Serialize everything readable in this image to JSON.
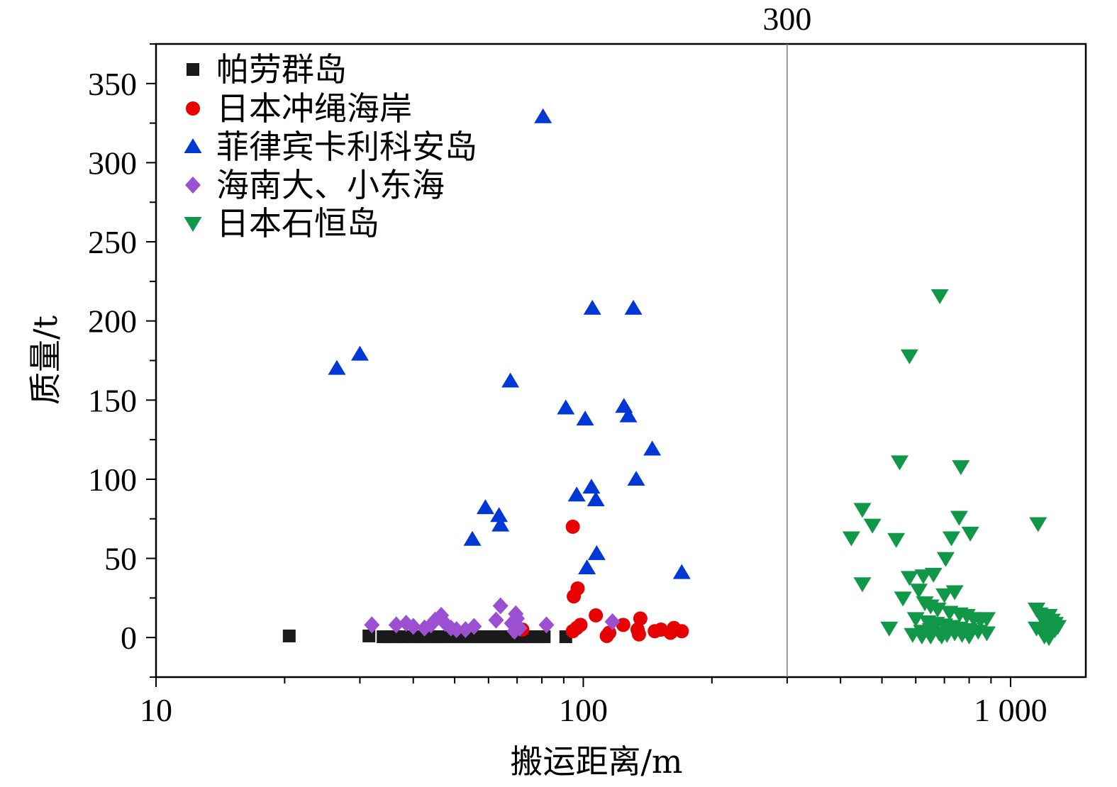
{
  "chart_data": {
    "type": "scatter",
    "xlabel": "搬运距离/m",
    "ylabel": "质量/t",
    "xscale": "log",
    "xlim": [
      10,
      1500
    ],
    "ylim": [
      -25,
      375
    ],
    "xticks": [
      {
        "value": 10,
        "label": "10"
      },
      {
        "value": 100,
        "label": "100"
      },
      {
        "value": 1000,
        "label": "1 000"
      }
    ],
    "yticks": [
      {
        "value": 0,
        "label": "0"
      },
      {
        "value": 50,
        "label": "50"
      },
      {
        "value": 100,
        "label": "100"
      },
      {
        "value": 150,
        "label": "150"
      },
      {
        "value": 200,
        "label": "200"
      },
      {
        "value": 250,
        "label": "250"
      },
      {
        "value": 300,
        "label": "300"
      },
      {
        "value": 350,
        "label": "350"
      }
    ],
    "reference_line": {
      "x": 300,
      "label": "300"
    },
    "grid": false,
    "legend_position": "top-left",
    "series": [
      {
        "name": "帕劳群岛",
        "marker": "square",
        "color": "#1a1a1a",
        "points": [
          [
            20.5,
            1
          ],
          [
            31.5,
            1
          ],
          [
            34,
            0.5
          ],
          [
            35,
            0.5
          ],
          [
            36.5,
            0.5
          ],
          [
            38,
            0.5
          ],
          [
            39.5,
            0.5
          ],
          [
            41,
            0.5
          ],
          [
            42.5,
            0.5
          ],
          [
            44,
            0.5
          ],
          [
            45.5,
            0.5
          ],
          [
            47,
            0.5
          ],
          [
            49,
            0.5
          ],
          [
            51,
            0.5
          ],
          [
            53,
            0.5
          ],
          [
            55,
            0.5
          ],
          [
            57,
            0.5
          ],
          [
            59,
            0.5
          ],
          [
            61,
            0.5
          ],
          [
            63,
            0.5
          ],
          [
            65,
            0.5
          ],
          [
            67,
            0.5
          ],
          [
            69,
            0.5
          ],
          [
            72,
            0.5
          ],
          [
            75,
            0.5
          ],
          [
            78,
            0.5
          ],
          [
            81,
            0.5
          ],
          [
            91,
            0.5
          ]
        ]
      },
      {
        "name": "日本冲绳海岸",
        "color": "#e60000",
        "marker": "circle",
        "points": [
          [
            72,
            5
          ],
          [
            94.5,
            70
          ],
          [
            95,
            26
          ],
          [
            97,
            31
          ],
          [
            94.5,
            4
          ],
          [
            96.5,
            6
          ],
          [
            98.5,
            8
          ],
          [
            107,
            14
          ],
          [
            113.5,
            1
          ],
          [
            115,
            3
          ],
          [
            124,
            8
          ],
          [
            134,
            5
          ],
          [
            136,
            12
          ],
          [
            135,
            2
          ],
          [
            147,
            4
          ],
          [
            152,
            5
          ],
          [
            160,
            3
          ],
          [
            163,
            6
          ],
          [
            170,
            4
          ]
        ]
      },
      {
        "name": "菲律宾卡利科安岛",
        "marker": "triangle-up",
        "color": "#0038d6",
        "points": [
          [
            26.5,
            170
          ],
          [
            30,
            179
          ],
          [
            80.5,
            329
          ],
          [
            105,
            208
          ],
          [
            131,
            208
          ],
          [
            67.5,
            162
          ],
          [
            91,
            145
          ],
          [
            101,
            138
          ],
          [
            124.5,
            146
          ],
          [
            127.5,
            140
          ],
          [
            145,
            119
          ],
          [
            133,
            100
          ],
          [
            96.5,
            90
          ],
          [
            104.5,
            95
          ],
          [
            107,
            87
          ],
          [
            59,
            82
          ],
          [
            63.5,
            77
          ],
          [
            64,
            71
          ],
          [
            55,
            62
          ],
          [
            107.5,
            53
          ],
          [
            102,
            44
          ],
          [
            170,
            41
          ]
        ]
      },
      {
        "name": "海南大、小东海",
        "marker": "diamond",
        "color": "#9b4fd1",
        "points": [
          [
            32,
            8
          ],
          [
            36.5,
            8
          ],
          [
            38.5,
            9
          ],
          [
            40,
            7
          ],
          [
            42.5,
            6
          ],
          [
            44,
            8
          ],
          [
            45,
            11
          ],
          [
            46.5,
            14
          ],
          [
            47.5,
            9
          ],
          [
            49,
            6
          ],
          [
            50.5,
            5
          ],
          [
            53,
            5
          ],
          [
            55.5,
            7
          ],
          [
            62.5,
            11
          ],
          [
            64,
            20
          ],
          [
            68,
            9
          ],
          [
            69.5,
            15
          ],
          [
            70,
            12
          ],
          [
            69,
            4
          ],
          [
            71,
            6
          ],
          [
            82,
            8
          ],
          [
            117,
            10
          ]
        ]
      },
      {
        "name": "日本石恒岛",
        "marker": "triangle-down",
        "color": "#109848",
        "points": [
          [
            683,
            216
          ],
          [
            580,
            178
          ],
          [
            550,
            111
          ],
          [
            765,
            108
          ],
          [
            450,
            81
          ],
          [
            475,
            71
          ],
          [
            758,
            76
          ],
          [
            424,
            63
          ],
          [
            540,
            62
          ],
          [
            727,
            63
          ],
          [
            805,
            66
          ],
          [
            1160,
            72
          ],
          [
            705,
            50
          ],
          [
            580,
            38
          ],
          [
            625,
            39
          ],
          [
            660,
            40
          ],
          [
            450,
            34
          ],
          [
            610,
            30
          ],
          [
            700,
            27
          ],
          [
            740,
            29
          ],
          [
            560,
            25
          ],
          [
            630,
            22
          ],
          [
            650,
            20
          ],
          [
            675,
            18
          ],
          [
            720,
            16
          ],
          [
            760,
            15
          ],
          [
            790,
            14
          ],
          [
            820,
            12
          ],
          [
            850,
            11
          ],
          [
            880,
            12
          ],
          [
            600,
            12
          ],
          [
            640,
            10
          ],
          [
            670,
            9
          ],
          [
            700,
            8
          ],
          [
            730,
            7
          ],
          [
            760,
            6
          ],
          [
            800,
            5
          ],
          [
            840,
            4
          ],
          [
            880,
            3
          ],
          [
            620,
            4
          ],
          [
            650,
            5
          ],
          [
            680,
            3
          ],
          [
            710,
            2
          ],
          [
            740,
            3
          ],
          [
            770,
            2
          ],
          [
            800,
            1
          ],
          [
            590,
            2
          ],
          [
            620,
            1
          ],
          [
            520,
            6
          ],
          [
            650,
            1
          ],
          [
            690,
            1
          ],
          [
            1150,
            18
          ],
          [
            1170,
            15
          ],
          [
            1190,
            12
          ],
          [
            1210,
            10
          ],
          [
            1230,
            14
          ],
          [
            1250,
            11
          ],
          [
            1270,
            9
          ],
          [
            1150,
            6
          ],
          [
            1180,
            5
          ],
          [
            1210,
            4
          ],
          [
            1240,
            3
          ],
          [
            1270,
            5
          ],
          [
            1290,
            7
          ],
          [
            1200,
            1
          ],
          [
            1230,
            0
          ]
        ]
      }
    ]
  }
}
